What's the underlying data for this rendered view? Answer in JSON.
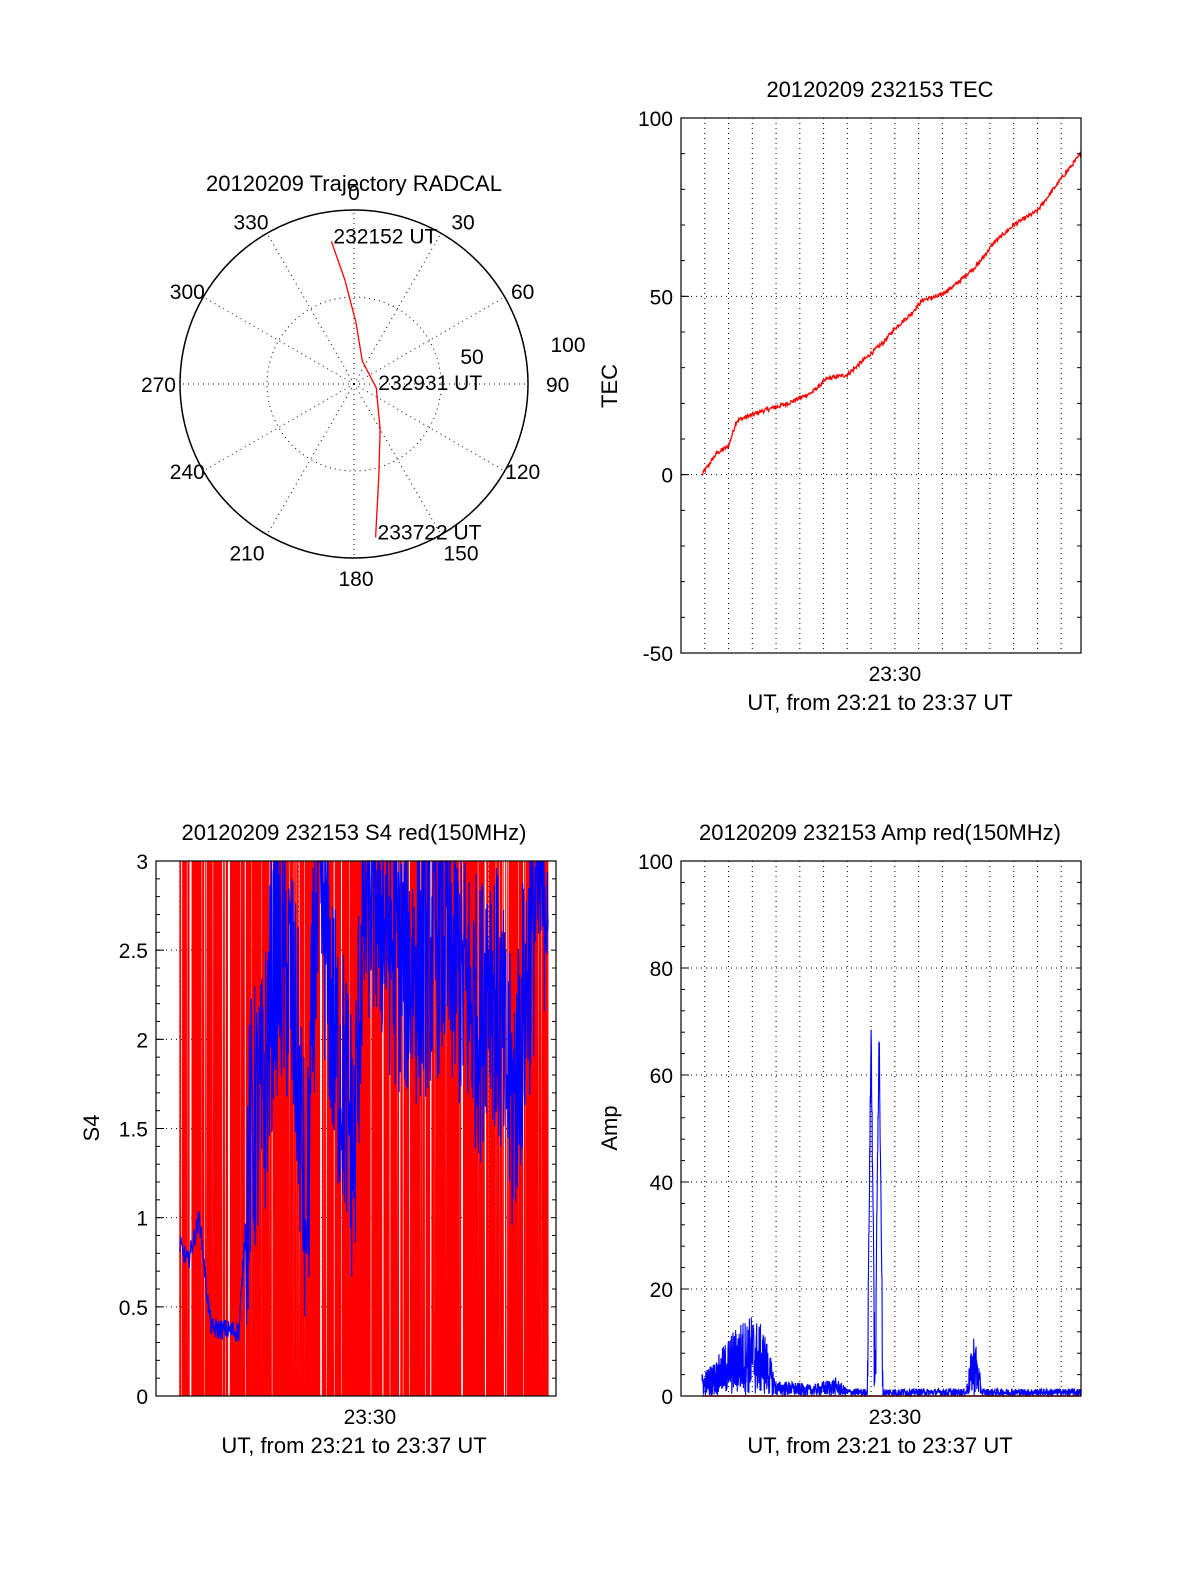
{
  "colors": {
    "red": "#ff0000",
    "blue": "#0000ff",
    "axis": "#000000"
  },
  "chart_data": [
    {
      "type": "polar",
      "title": "20120209 Trajectory RADCAL",
      "angle_labels": [
        "0",
        "30",
        "60",
        "90",
        "120",
        "150",
        "180",
        "210",
        "240",
        "270",
        "300",
        "330"
      ],
      "radial_labels": [
        "50",
        "100"
      ],
      "radial_range": [
        0,
        100
      ],
      "grid": true,
      "track": {
        "color": "red",
        "points": [
          {
            "az": 351,
            "r": 83
          },
          {
            "az": 355,
            "r": 60
          },
          {
            "az": 2,
            "r": 35
          },
          {
            "az": 20,
            "r": 14
          },
          {
            "az": 100,
            "r": 13
          },
          {
            "az": 150,
            "r": 30
          },
          {
            "az": 165,
            "r": 55
          },
          {
            "az": 172,
            "r": 89
          }
        ]
      },
      "annotations": [
        {
          "text": "232152 UT",
          "az": 351,
          "r": 83
        },
        {
          "text": "232931 UT",
          "az": 100,
          "r": 13
        },
        {
          "text": "233722 UT",
          "az": 172,
          "r": 89
        }
      ]
    },
    {
      "type": "line",
      "title": "20120209 232153 TEC",
      "xlabel": "UT, from 23:21 to 23:37 UT",
      "ylabel": "TEC",
      "x_range": [
        "23:21:00",
        "23:37:50"
      ],
      "x_tick_labels": [
        {
          "t": "23:30:00",
          "label": "23:30"
        }
      ],
      "yticks": [
        -50,
        0,
        50,
        100
      ],
      "ylim": [
        -50,
        100
      ],
      "grid": true,
      "series": [
        {
          "color": "red",
          "x": [
            "23:21:53",
            "23:22:30",
            "23:23:00",
            "23:23:20",
            "23:23:40",
            "23:24:30",
            "23:25:30",
            "23:26:30",
            "23:27:10",
            "23:28:00",
            "23:28:50",
            "23:29:30",
            "23:30:00",
            "23:30:40",
            "23:31:10",
            "23:31:50",
            "23:32:30",
            "23:33:30",
            "23:34:10",
            "23:35:00",
            "23:36:00",
            "23:37:00",
            "23:37:50"
          ],
          "y": [
            0,
            6,
            8,
            15,
            16,
            18,
            20,
            23,
            27,
            28,
            33,
            37,
            41,
            45,
            49,
            50,
            53,
            59,
            65,
            70,
            74,
            83,
            90
          ]
        }
      ]
    },
    {
      "type": "line",
      "title": "20120209 232153 S4 red(150MHz)",
      "xlabel": "UT, from 23:21 to 23:37 UT",
      "ylabel": "S4",
      "x_range": [
        "23:21:00",
        "23:37:50"
      ],
      "x_tick_labels": [
        {
          "t": "23:30:00",
          "label": "23:30"
        }
      ],
      "yticks": [
        0,
        0.5,
        1,
        1.5,
        2,
        2.5,
        3
      ],
      "ylim": [
        0,
        3
      ],
      "grid": true,
      "series": [
        {
          "color": "red",
          "style": "dense vertical spikes between 0 and 3",
          "x": [
            "23:22:00",
            "23:22:35",
            "23:23:10",
            "23:24:00",
            "23:25:00",
            "23:26:00",
            "23:27:00",
            "23:28:00",
            "23:29:00",
            "23:30:00",
            "23:31:00",
            "23:32:00",
            "23:33:00",
            "23:34:00",
            "23:35:00",
            "23:36:00",
            "23:37:00",
            "23:37:30"
          ],
          "y": [
            0,
            3,
            0,
            3,
            0,
            3,
            0,
            3,
            0,
            3,
            0,
            3,
            0,
            3,
            0,
            3,
            0,
            3
          ]
        },
        {
          "color": "blue",
          "x": [
            "23:22:00",
            "23:22:20",
            "23:22:50",
            "23:23:10",
            "23:23:20",
            "23:24:00",
            "23:24:30",
            "23:25:00",
            "23:25:30",
            "23:26:00",
            "23:26:20",
            "23:26:40",
            "23:27:00",
            "23:27:20",
            "23:27:40",
            "23:28:00",
            "23:28:30",
            "23:29:00",
            "23:29:20",
            "23:29:40",
            "23:30:00",
            "23:30:20",
            "23:31:00",
            "23:32:00",
            "23:33:00",
            "23:34:00",
            "23:34:40",
            "23:35:00",
            "23:35:40",
            "23:36:00",
            "23:37:00",
            "23:37:30"
          ],
          "y": [
            0.85,
            0.75,
            1.0,
            0.55,
            0.38,
            0.37,
            0.36,
            1.5,
            1.6,
            2.5,
            2.4,
            2.3,
            1.8,
            0.8,
            2.5,
            2.8,
            2.0,
            1.7,
            1.3,
            2.6,
            2.9,
            2.8,
            2.5,
            2.4,
            2.6,
            2.3,
            2.1,
            2.5,
            1.9,
            1.6,
            2.8,
            3.0
          ]
        }
      ]
    },
    {
      "type": "line",
      "title": "20120209 232153 Amp red(150MHz)",
      "xlabel": "UT, from 23:21 to 23:37 UT",
      "ylabel": "Amp",
      "x_range": [
        "23:21:00",
        "23:37:50"
      ],
      "x_tick_labels": [
        {
          "t": "23:30:00",
          "label": "23:30"
        }
      ],
      "yticks": [
        0,
        20,
        40,
        60,
        80,
        100
      ],
      "ylim": [
        0,
        100
      ],
      "grid": true,
      "series": [
        {
          "color": "blue",
          "x": [
            "23:21:53",
            "23:22:30",
            "23:23:00",
            "23:23:30",
            "23:24:00",
            "23:24:30",
            "23:25:00",
            "23:25:30",
            "23:26:30",
            "23:27:30",
            "23:28:00",
            "23:28:30",
            "23:28:50",
            "23:29:00",
            "23:29:10",
            "23:29:20",
            "23:29:30",
            "23:29:40",
            "23:30:00",
            "23:31:00",
            "23:32:00",
            "23:33:00",
            "23:33:20",
            "23:33:40",
            "23:34:00",
            "23:35:00",
            "23:36:00",
            "23:37:00",
            "23:37:50"
          ],
          "y": [
            3,
            5,
            8,
            10,
            11,
            9,
            2,
            2,
            1.5,
            2.5,
            1,
            1,
            1,
            73,
            2,
            75,
            1,
            1,
            1,
            1,
            1,
            1,
            9,
            1,
            1,
            1,
            1,
            1,
            1
          ]
        },
        {
          "color": "red",
          "x": [
            "23:21:53",
            "23:25:30",
            "23:37:50"
          ],
          "y": [
            0,
            0,
            0
          ]
        }
      ]
    }
  ]
}
